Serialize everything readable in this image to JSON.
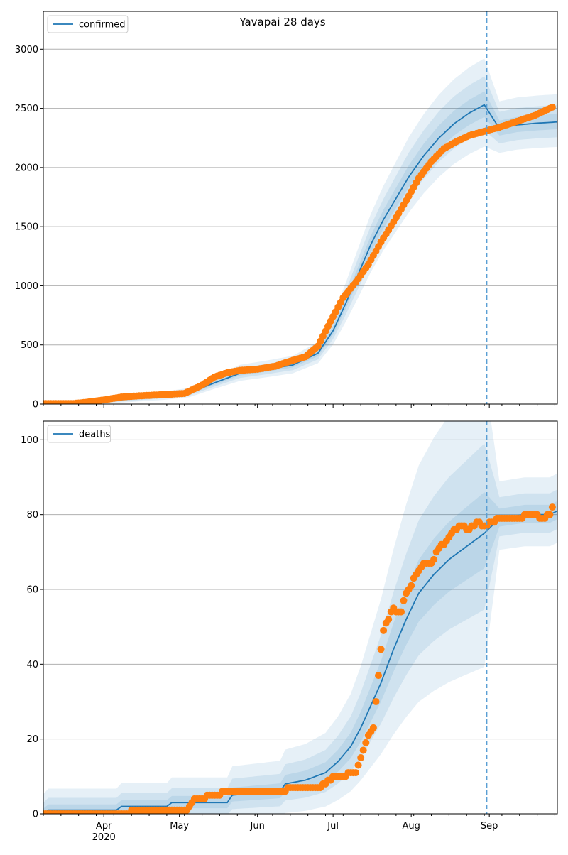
{
  "figure": {
    "title": "Yavapai 28 days"
  },
  "colors": {
    "model": "#1f77b4",
    "observed": "#ff7f0e",
    "band": "#1f77b4",
    "grid": "#b0b0b0",
    "cutoff": "#5a9fd4"
  },
  "chart_data": [
    {
      "type": "line",
      "title": "Yavapai 28 days",
      "legend": {
        "entries": [
          "confirmed"
        ],
        "placement": "top-left"
      },
      "grid": "horizontal",
      "x_domain": [
        "2020-03-08",
        "2020-09-28"
      ],
      "x_ticks": [
        {
          "date": "2020-04-01",
          "label": "Apr",
          "sublabel": "2020"
        },
        {
          "date": "2020-05-01",
          "label": "May"
        },
        {
          "date": "2020-06-01",
          "label": "Jun"
        },
        {
          "date": "2020-07-01",
          "label": "Jul"
        },
        {
          "date": "2020-08-01",
          "label": "Aug"
        },
        {
          "date": "2020-09-01",
          "label": "Sep"
        }
      ],
      "y_ticks": [
        0,
        500,
        1000,
        1500,
        2000,
        2500,
        3000
      ],
      "ylim": [
        0,
        3320
      ],
      "forecast_start": "2020-08-31",
      "series": [
        {
          "name": "confirmed",
          "role": "model",
          "x": [
            "2020-03-08",
            "2020-03-25",
            "2020-04-10",
            "2020-04-25",
            "2020-05-05",
            "2020-05-15",
            "2020-05-25",
            "2020-06-05",
            "2020-06-15",
            "2020-06-25",
            "2020-07-01",
            "2020-07-06",
            "2020-07-11",
            "2020-07-16",
            "2020-07-21",
            "2020-07-26",
            "2020-07-31",
            "2020-08-06",
            "2020-08-12",
            "2020-08-18",
            "2020-08-24",
            "2020-08-30",
            "2020-09-05",
            "2020-09-12",
            "2020-09-20",
            "2020-09-28"
          ],
          "y": [
            0,
            10,
            40,
            70,
            95,
            180,
            260,
            295,
            330,
            430,
            620,
            850,
            1100,
            1350,
            1560,
            1740,
            1920,
            2100,
            2250,
            2370,
            2460,
            2530,
            2330,
            2360,
            2375,
            2385
          ],
          "band_scale": [
            0,
            0.1,
            0.15,
            0.2,
            0.2,
            0.25,
            0.3,
            0.3,
            0.3,
            0.35,
            0.45,
            0.6,
            0.75,
            0.85,
            0.9,
            0.95,
            1,
            1,
            1,
            1,
            1,
            1,
            0.08,
            0.08,
            0.08,
            0.08
          ]
        },
        {
          "name": "confirmed observed",
          "role": "observed",
          "x": [
            "2020-03-08",
            "2020-03-20",
            "2020-03-25",
            "2020-04-01",
            "2020-04-08",
            "2020-04-15",
            "2020-04-25",
            "2020-05-03",
            "2020-05-10",
            "2020-05-15",
            "2020-05-20",
            "2020-05-25",
            "2020-06-01",
            "2020-06-08",
            "2020-06-15",
            "2020-06-20",
            "2020-06-25",
            "2020-06-30",
            "2020-07-05",
            "2020-07-10",
            "2020-07-15",
            "2020-07-20",
            "2020-07-25",
            "2020-07-30",
            "2020-08-04",
            "2020-08-09",
            "2020-08-14",
            "2020-08-19",
            "2020-08-24",
            "2020-08-29",
            "2020-09-05",
            "2020-09-12",
            "2020-09-19",
            "2020-09-26"
          ],
          "y": [
            5,
            5,
            15,
            35,
            60,
            70,
            80,
            90,
            160,
            230,
            265,
            285,
            295,
            320,
            370,
            400,
            490,
            700,
            900,
            1030,
            1180,
            1370,
            1540,
            1720,
            1910,
            2050,
            2160,
            2220,
            2270,
            2300,
            2340,
            2390,
            2440,
            2510
          ]
        }
      ]
    },
    {
      "type": "line",
      "legend": {
        "entries": [
          "deaths"
        ],
        "placement": "top-left"
      },
      "grid": "horizontal",
      "x_domain": [
        "2020-03-08",
        "2020-09-28"
      ],
      "x_ticks": [
        {
          "date": "2020-04-01",
          "label": "Apr",
          "sublabel": "2020"
        },
        {
          "date": "2020-05-01",
          "label": "May"
        },
        {
          "date": "2020-06-01",
          "label": "Jun"
        },
        {
          "date": "2020-07-01",
          "label": "Jul"
        },
        {
          "date": "2020-08-01",
          "label": "Aug"
        },
        {
          "date": "2020-09-01",
          "label": "Sep"
        }
      ],
      "y_ticks": [
        0,
        20,
        40,
        60,
        80,
        100
      ],
      "ylim": [
        0,
        105
      ],
      "forecast_start": "2020-08-31",
      "series": [
        {
          "name": "deaths",
          "role": "model",
          "x": [
            "2020-03-08",
            "2020-03-10",
            "2020-04-06",
            "2020-04-08",
            "2020-04-26",
            "2020-04-28",
            "2020-05-20",
            "2020-05-22",
            "2020-06-10",
            "2020-06-12",
            "2020-06-20",
            "2020-06-28",
            "2020-07-03",
            "2020-07-08",
            "2020-07-12",
            "2020-07-16",
            "2020-07-20",
            "2020-07-25",
            "2020-07-30",
            "2020-08-04",
            "2020-08-10",
            "2020-08-16",
            "2020-08-22",
            "2020-08-30",
            "2020-09-05",
            "2020-09-15",
            "2020-09-25",
            "2020-09-28"
          ],
          "y": [
            0,
            1,
            1,
            2,
            2,
            3,
            3,
            5,
            6,
            8,
            9,
            11,
            14,
            18,
            23,
            29,
            35,
            44,
            52,
            59,
            64,
            68,
            71,
            75,
            79,
            80,
            80,
            81
          ],
          "band_scale": [
            1,
            1,
            1,
            1,
            1,
            1,
            1,
            1,
            1,
            1,
            1,
            1,
            1,
            1,
            1,
            1,
            1,
            1,
            1,
            1,
            1,
            1,
            1,
            1,
            0.12,
            0.12,
            0.12,
            0.12
          ]
        },
        {
          "name": "deaths observed",
          "role": "observed",
          "x": [
            "2020-03-08",
            "2020-04-10",
            "2020-04-14",
            "2020-05-04",
            "2020-05-06",
            "2020-05-08",
            "2020-05-15",
            "2020-05-20",
            "2020-05-30",
            "2020-06-05",
            "2020-06-10",
            "2020-06-15",
            "2020-06-25",
            "2020-06-28",
            "2020-07-02",
            "2020-07-05",
            "2020-07-08",
            "2020-07-10",
            "2020-07-12",
            "2020-07-15",
            "2020-07-17",
            "2020-07-19",
            "2020-07-20",
            "2020-07-21",
            "2020-07-22",
            "2020-07-25",
            "2020-07-26",
            "2020-07-28",
            "2020-07-30",
            "2020-07-31",
            "2020-08-03",
            "2020-08-06",
            "2020-08-09",
            "2020-08-12",
            "2020-08-15",
            "2020-08-18",
            "2020-08-21",
            "2020-08-24",
            "2020-08-27",
            "2020-08-30",
            "2020-09-05",
            "2020-09-12",
            "2020-09-18",
            "2020-09-22",
            "2020-09-25",
            "2020-09-26"
          ],
          "y": [
            0,
            0,
            1,
            1,
            3,
            4,
            5,
            6,
            6,
            6,
            6,
            7,
            7,
            8,
            10,
            10,
            11,
            11,
            15,
            21,
            23,
            37,
            44,
            49,
            51,
            55,
            54,
            54,
            59,
            60,
            64,
            67,
            67,
            71,
            73,
            76,
            77,
            76,
            78,
            77,
            79,
            79,
            80,
            79,
            80,
            82
          ]
        }
      ]
    }
  ]
}
